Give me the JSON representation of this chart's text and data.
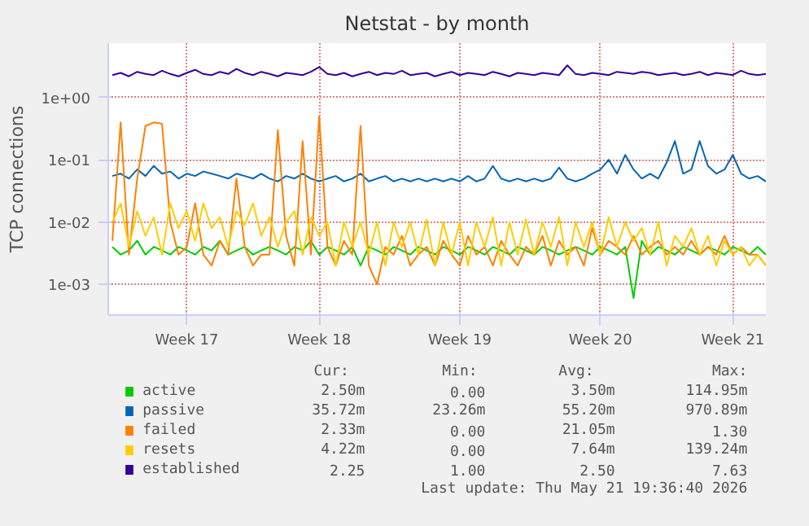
{
  "chart_data": {
    "type": "line",
    "title": "Netstat - by month",
    "ylabel": "TCP connections",
    "log": "y",
    "grid": true,
    "legend": "bottom",
    "marker": "none",
    "line_style": "solid",
    "categories": [
      null,
      null,
      null,
      null,
      null,
      null,
      null,
      null,
      null,
      "Week 17",
      null,
      null,
      null,
      null,
      null,
      null,
      null,
      null,
      null,
      null,
      null,
      null,
      null,
      null,
      null,
      "Week 18",
      null,
      null,
      null,
      null,
      null,
      null,
      null,
      null,
      null,
      null,
      null,
      null,
      null,
      null,
      null,
      null,
      "Week 19",
      null,
      null,
      null,
      null,
      null,
      null,
      null,
      null,
      null,
      null,
      null,
      null,
      null,
      null,
      null,
      null,
      "Week 20",
      null,
      null,
      null,
      null,
      null,
      null,
      null,
      null,
      null,
      null,
      null,
      null,
      null,
      null,
      null,
      "Week 21",
      null,
      null,
      null,
      null
    ],
    "ylim": [
      0.00032,
      7.5
    ],
    "yticks": [
      {
        "value": 1,
        "label": "1e+00"
      },
      {
        "value": 0.1,
        "label": "1e-01"
      },
      {
        "value": 0.01,
        "label": "1e-02"
      },
      {
        "value": 0.001,
        "label": "1e-03"
      }
    ],
    "series": [
      {
        "name": "active",
        "color": "#00cc00",
        "values": [
          0.004,
          0.003,
          0.0035,
          0.005,
          0.003,
          0.004,
          0.0035,
          0.003,
          0.004,
          0.0035,
          0.003,
          0.004,
          0.0035,
          0.005,
          0.003,
          0.0035,
          0.004,
          0.003,
          0.0035,
          0.004,
          0.0035,
          0.003,
          0.004,
          0.0035,
          0.005,
          0.003,
          0.004,
          0.0035,
          0.003,
          0.004,
          0.002,
          0.004,
          0.0035,
          0.003,
          0.004,
          0.0035,
          0.003,
          0.004,
          0.0035,
          0.003,
          0.004,
          0.0035,
          0.003,
          0.004,
          0.0035,
          0.003,
          0.004,
          0.0035,
          0.003,
          0.004,
          0.0035,
          0.003,
          0.004,
          0.0035,
          0.003,
          0.0035,
          0.004,
          0.0035,
          0.003,
          0.004,
          0.0035,
          0.003,
          0.004,
          0.0006,
          0.005,
          0.003,
          0.004,
          0.0035,
          0.003,
          0.004,
          0.0035,
          0.003,
          0.004,
          0.0035,
          0.003,
          0.004,
          0.0035,
          0.003,
          0.004,
          0.003
        ]
      },
      {
        "name": "passive",
        "color": "#0066b3",
        "values": [
          0.055,
          0.06,
          0.05,
          0.07,
          0.055,
          0.08,
          0.06,
          0.065,
          0.05,
          0.06,
          0.055,
          0.065,
          0.06,
          0.055,
          0.05,
          0.06,
          0.055,
          0.05,
          0.06,
          0.05,
          0.045,
          0.055,
          0.05,
          0.06,
          0.05,
          0.045,
          0.05,
          0.055,
          0.045,
          0.05,
          0.06,
          0.045,
          0.05,
          0.055,
          0.045,
          0.05,
          0.045,
          0.05,
          0.045,
          0.05,
          0.045,
          0.05,
          0.045,
          0.055,
          0.045,
          0.05,
          0.08,
          0.05,
          0.045,
          0.05,
          0.045,
          0.05,
          0.045,
          0.05,
          0.075,
          0.05,
          0.045,
          0.05,
          0.06,
          0.07,
          0.1,
          0.06,
          0.12,
          0.07,
          0.05,
          0.06,
          0.05,
          0.09,
          0.2,
          0.06,
          0.07,
          0.2,
          0.08,
          0.06,
          0.07,
          0.12,
          0.06,
          0.05,
          0.055,
          0.045
        ]
      },
      {
        "name": "failed",
        "color": "#ff8000",
        "values": [
          0.005,
          0.4,
          0.003,
          0.05,
          0.35,
          0.4,
          0.38,
          0.01,
          0.003,
          0.004,
          0.02,
          0.003,
          0.002,
          0.005,
          0.003,
          0.05,
          0.004,
          0.002,
          0.003,
          0.003,
          0.3,
          0.006,
          0.002,
          0.2,
          0.003,
          0.5,
          0.004,
          0.002,
          0.005,
          0.003,
          0.35,
          0.002,
          0.001,
          0.004,
          0.003,
          0.006,
          0.002,
          0.003,
          0.004,
          0.002,
          0.005,
          0.003,
          0.002,
          0.006,
          0.003,
          0.004,
          0.002,
          0.005,
          0.003,
          0.002,
          0.004,
          0.003,
          0.006,
          0.002,
          0.005,
          0.003,
          0.004,
          0.002,
          0.008,
          0.003,
          0.005,
          0.004,
          0.003,
          0.006,
          0.003,
          0.004,
          0.005,
          0.003,
          0.004,
          0.003,
          0.005,
          0.003,
          0.004,
          0.003,
          0.006,
          0.003,
          0.004,
          0.003,
          0.003,
          0.002
        ]
      },
      {
        "name": "resets",
        "color": "#ffcc00",
        "values": [
          0.01,
          0.02,
          0.004,
          0.015,
          0.006,
          0.012,
          0.003,
          0.02,
          0.008,
          0.015,
          0.005,
          0.02,
          0.008,
          0.012,
          0.004,
          0.015,
          0.009,
          0.02,
          0.006,
          0.012,
          0.004,
          0.01,
          0.015,
          0.003,
          0.012,
          0.006,
          0.01,
          0.002,
          0.01,
          0.004,
          0.01,
          0.003,
          0.01,
          0.002,
          0.01,
          0.004,
          0.01,
          0.003,
          0.011,
          0.002,
          0.01,
          0.003,
          0.01,
          0.002,
          0.01,
          0.004,
          0.012,
          0.002,
          0.01,
          0.003,
          0.011,
          0.003,
          0.01,
          0.004,
          0.012,
          0.002,
          0.01,
          0.004,
          0.01,
          0.003,
          0.012,
          0.004,
          0.01,
          0.005,
          0.008,
          0.003,
          0.01,
          0.002,
          0.006,
          0.004,
          0.008,
          0.003,
          0.006,
          0.002,
          0.005,
          0.003,
          0.004,
          0.002,
          0.003,
          0.002
        ]
      },
      {
        "name": "established",
        "color": "#330099",
        "values": [
          2.3,
          2.5,
          2.2,
          2.6,
          2.4,
          2.3,
          2.7,
          2.4,
          2.2,
          2.5,
          2.8,
          2.4,
          2.3,
          2.6,
          2.4,
          2.9,
          2.5,
          2.3,
          2.6,
          2.4,
          2.2,
          2.5,
          2.4,
          2.3,
          2.6,
          3.1,
          2.4,
          2.3,
          2.5,
          2.2,
          2.4,
          2.6,
          2.3,
          2.5,
          2.4,
          2.7,
          2.3,
          2.4,
          2.5,
          2.2,
          2.4,
          2.6,
          2.3,
          2.5,
          2.4,
          2.3,
          2.6,
          2.4,
          2.2,
          2.5,
          2.4,
          2.3,
          2.5,
          2.4,
          2.3,
          3.3,
          2.4,
          2.3,
          2.5,
          2.4,
          2.3,
          2.6,
          2.5,
          2.4,
          2.6,
          2.5,
          2.3,
          2.4,
          2.5,
          2.3,
          2.4,
          2.6,
          2.3,
          2.5,
          2.4,
          2.3,
          2.7,
          2.4,
          2.3,
          2.4
        ]
      }
    ],
    "annotations": [
      "Cur:",
      "Min:",
      "Avg:",
      "Max:",
      "2.50m",
      "0.00",
      "3.50m",
      "114.95m",
      "35.72m",
      "23.26m",
      "55.20m",
      "970.89m",
      "2.33m",
      "0.00",
      "21.05m",
      "1.30",
      "4.22m",
      "0.00",
      "7.64m",
      "139.24m",
      "2.25",
      "1.00",
      "2.50",
      "7.63",
      "Last update: Thu May 21 19:36:40 2026"
    ]
  }
}
